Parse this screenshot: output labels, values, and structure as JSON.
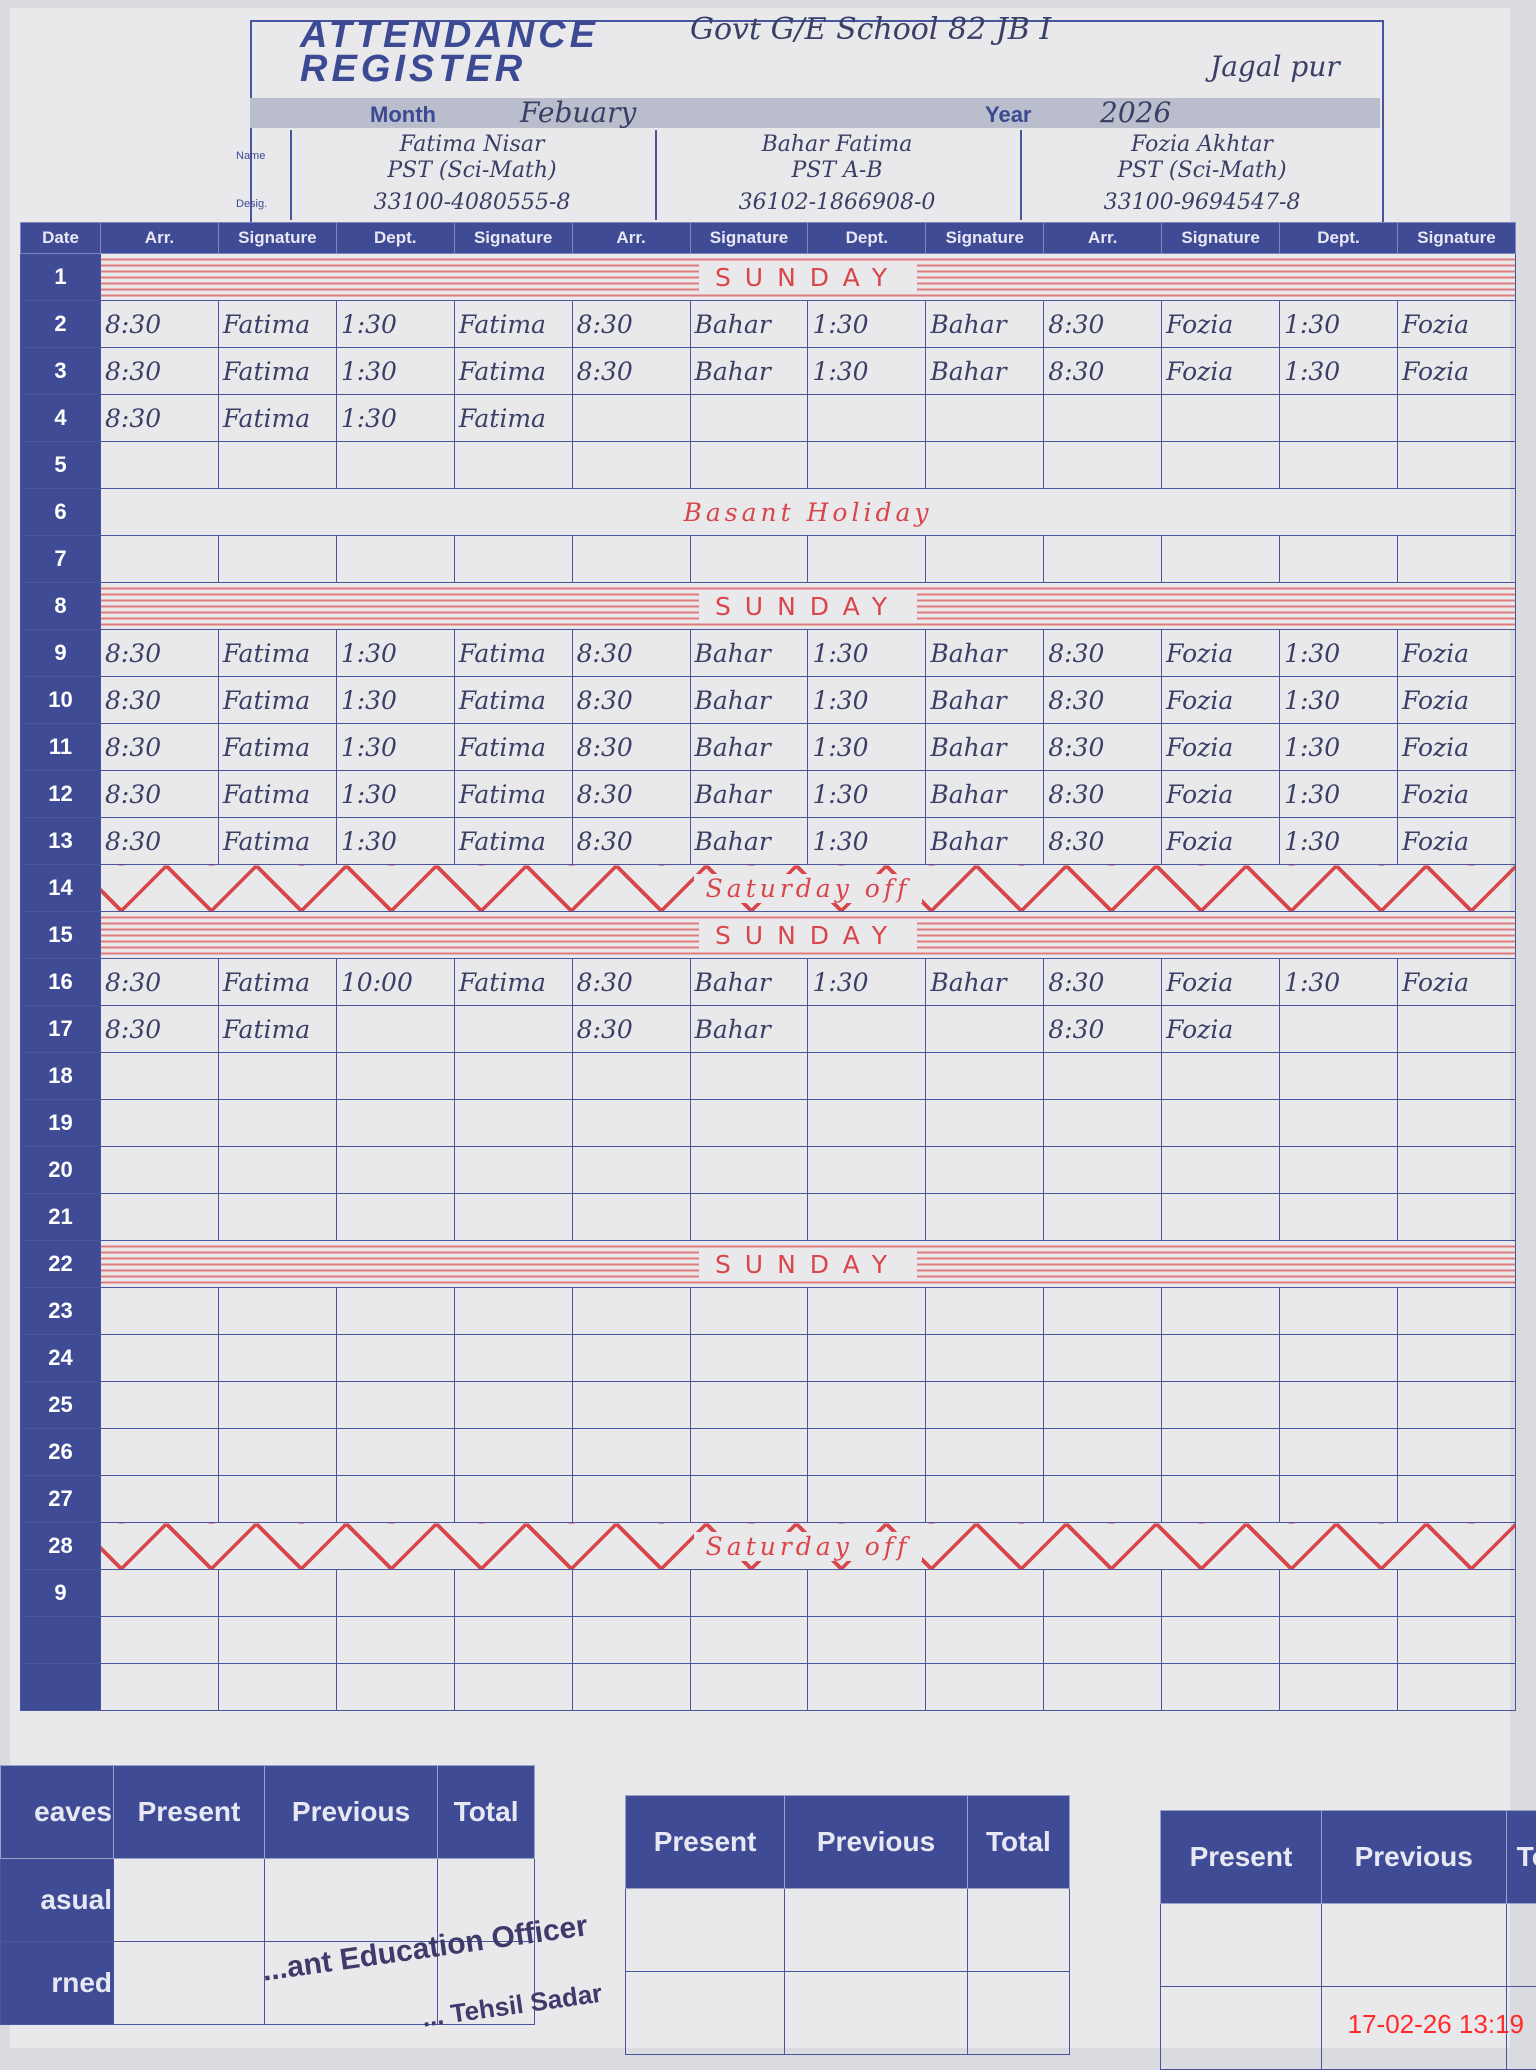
{
  "header": {
    "title_line1": "ATTENDANCE",
    "title_line2": "REGISTER",
    "school_line1": "Govt G/E School 82 JB I",
    "school_line2": "Jagal pur",
    "month_label": "Month",
    "month_value": "Febuary",
    "year_label": "Year",
    "year_value": "2026",
    "name_label": "Name",
    "desig_label": "Desig."
  },
  "teachers": [
    {
      "name": "Fatima Nisar",
      "designation": "PST (Sci-Math)",
      "cnic": "33100-4080555-8"
    },
    {
      "name": "Bahar Fatima",
      "designation": "PST A-B",
      "cnic": "36102-1866908-0"
    },
    {
      "name": "Fozia Akhtar",
      "designation": "PST (Sci-Math)",
      "cnic": "33100-9694547-8"
    }
  ],
  "columns": {
    "date": "Date",
    "arr": "Arr.",
    "signature": "Signature",
    "dept": "Dept."
  },
  "colors": {
    "blue": "#3f4c95",
    "red_ink": "#d9464a",
    "paper": "#e9e9ec"
  },
  "rows": [
    {
      "day": "1",
      "overlay": "SUNDAY",
      "style": "stripe"
    },
    {
      "day": "2",
      "cells": [
        "8:30",
        "Fatima",
        "1:30",
        "Fatima",
        "8:30",
        "Bahar",
        "1:30",
        "Bahar",
        "8:30",
        "Fozia",
        "1:30",
        "Fozia"
      ]
    },
    {
      "day": "3",
      "cells": [
        "8:30",
        "Fatima",
        "1:30",
        "Fatima",
        "8:30",
        "Bahar",
        "1:30",
        "Bahar",
        "8:30",
        "Fozia",
        "1:30",
        "Fozia"
      ]
    },
    {
      "day": "4",
      "cells": [
        "8:30",
        "Fatima",
        "1:30",
        "Fatima",
        "",
        "",
        "",
        "",
        "",
        "",
        "",
        ""
      ]
    },
    {
      "day": "5",
      "cells": [
        "",
        "",
        "",
        "",
        "",
        "",
        "",
        "",
        "",
        "",
        "",
        ""
      ]
    },
    {
      "day": "6",
      "overlay": "Basant Holiday",
      "style": "plain"
    },
    {
      "day": "7",
      "cells": [
        "",
        "",
        "",
        "",
        "",
        "",
        "",
        "",
        "",
        "",
        "",
        ""
      ]
    },
    {
      "day": "8",
      "overlay": "SUNDAY",
      "style": "stripe"
    },
    {
      "day": "9",
      "cells": [
        "8:30",
        "Fatima",
        "1:30",
        "Fatima",
        "8:30",
        "Bahar",
        "1:30",
        "Bahar",
        "8:30",
        "Fozia",
        "1:30",
        "Fozia"
      ]
    },
    {
      "day": "10",
      "cells": [
        "8:30",
        "Fatima",
        "1:30",
        "Fatima",
        "8:30",
        "Bahar",
        "1:30",
        "Bahar",
        "8:30",
        "Fozia",
        "1:30",
        "Fozia"
      ]
    },
    {
      "day": "11",
      "cells": [
        "8:30",
        "Fatima",
        "1:30",
        "Fatima",
        "8:30",
        "Bahar",
        "1:30",
        "Bahar",
        "8:30",
        "Fozia",
        "1:30",
        "Fozia"
      ]
    },
    {
      "day": "12",
      "cells": [
        "8:30",
        "Fatima",
        "1:30",
        "Fatima",
        "8:30",
        "Bahar",
        "1:30",
        "Bahar",
        "8:30",
        "Fozia",
        "1:30",
        "Fozia"
      ]
    },
    {
      "day": "13",
      "cells": [
        "8:30",
        "Fatima",
        "1:30",
        "Fatima",
        "8:30",
        "Bahar",
        "1:30",
        "Bahar",
        "8:30",
        "Fozia",
        "1:30",
        "Fozia"
      ]
    },
    {
      "day": "14",
      "overlay": "Saturday off",
      "style": "zig"
    },
    {
      "day": "15",
      "overlay": "SUNDAY",
      "style": "stripe"
    },
    {
      "day": "16",
      "cells": [
        "8:30",
        "Fatima",
        "10:00",
        "Fatima",
        "8:30",
        "Bahar",
        "1:30",
        "Bahar",
        "8:30",
        "Fozia",
        "1:30",
        "Fozia"
      ]
    },
    {
      "day": "17",
      "cells": [
        "8:30",
        "Fatima",
        "",
        "",
        "8:30",
        "Bahar",
        "",
        "",
        "8:30",
        "Fozia",
        "",
        ""
      ]
    },
    {
      "day": "18",
      "cells": [
        "",
        "",
        "",
        "",
        "",
        "",
        "",
        "",
        "",
        "",
        "",
        ""
      ]
    },
    {
      "day": "19",
      "cells": [
        "",
        "",
        "",
        "",
        "",
        "",
        "",
        "",
        "",
        "",
        "",
        ""
      ]
    },
    {
      "day": "20",
      "cells": [
        "",
        "",
        "",
        "",
        "",
        "",
        "",
        "",
        "",
        "",
        "",
        ""
      ]
    },
    {
      "day": "21",
      "cells": [
        "",
        "",
        "",
        "",
        "",
        "",
        "",
        "",
        "",
        "",
        "",
        ""
      ]
    },
    {
      "day": "22",
      "overlay": "SUNDAY",
      "style": "stripe"
    },
    {
      "day": "23",
      "cells": [
        "",
        "",
        "",
        "",
        "",
        "",
        "",
        "",
        "",
        "",
        "",
        ""
      ]
    },
    {
      "day": "24",
      "cells": [
        "",
        "",
        "",
        "",
        "",
        "",
        "",
        "",
        "",
        "",
        "",
        ""
      ]
    },
    {
      "day": "25",
      "cells": [
        "",
        "",
        "",
        "",
        "",
        "",
        "",
        "",
        "",
        "",
        "",
        ""
      ]
    },
    {
      "day": "26",
      "cells": [
        "",
        "",
        "",
        "",
        "",
        "",
        "",
        "",
        "",
        "",
        "",
        ""
      ]
    },
    {
      "day": "27",
      "cells": [
        "",
        "",
        "",
        "",
        "",
        "",
        "",
        "",
        "",
        "",
        "",
        ""
      ]
    },
    {
      "day": "28",
      "overlay": "Saturday off",
      "style": "zig"
    },
    {
      "day": "9",
      "cells": [
        "",
        "",
        "",
        "",
        "",
        "",
        "",
        "",
        "",
        "",
        "",
        ""
      ]
    },
    {
      "day": "",
      "cells": [
        "",
        "",
        "",
        "",
        "",
        "",
        "",
        "",
        "",
        "",
        "",
        ""
      ]
    },
    {
      "day": "",
      "cells": [
        "",
        "",
        "",
        "",
        "",
        "",
        "",
        "",
        "",
        "",
        "",
        ""
      ]
    }
  ],
  "footer": {
    "leaves_label": "eaves",
    "row_labels": [
      "asual",
      "rned"
    ],
    "headers": [
      "Present",
      "Previous",
      "Total"
    ],
    "third_panel_headers": [
      "Present",
      "Previous",
      "To"
    ],
    "stamp_line1": "...ant Education Officer",
    "stamp_line2": "... Tehsil Sadar"
  },
  "timestamp": "17-02-26 13:19"
}
